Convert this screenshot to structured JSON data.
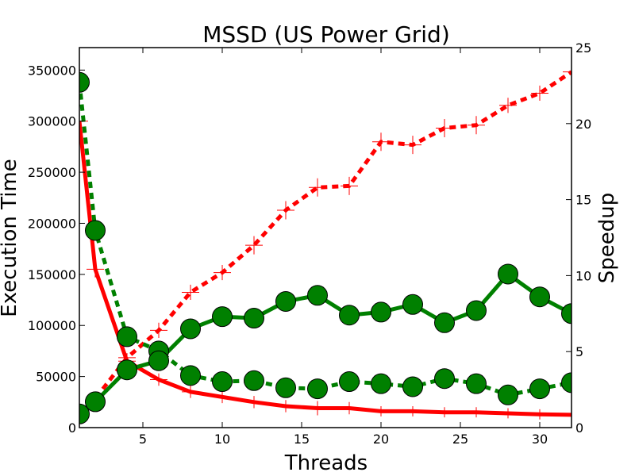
{
  "chart_data": {
    "type": "line",
    "title": "MSSD (US Power Grid)",
    "xlabel": "Threads",
    "ylabel_left": "Execution Time",
    "ylabel_right": "Speedup",
    "xlim": [
      1,
      32
    ],
    "ylim_left": [
      0,
      372000
    ],
    "ylim_right": [
      0,
      25
    ],
    "x_ticks": [
      5,
      10,
      15,
      20,
      25,
      30
    ],
    "y_ticks_left": [
      0,
      50000,
      100000,
      150000,
      200000,
      250000,
      300000,
      350000
    ],
    "y_ticks_right": [
      0,
      5,
      10,
      15,
      20,
      25
    ],
    "grid": false,
    "series": [
      {
        "axis": "left",
        "color": "#ff0000",
        "style": "solid",
        "marker": "errorbar",
        "x": [
          1,
          2,
          4,
          6,
          8,
          10,
          12,
          14,
          16,
          18,
          20,
          22,
          24,
          26,
          28,
          30,
          32
        ],
        "y": [
          300000,
          155000,
          65000,
          47000,
          35000,
          30000,
          25000,
          21000,
          19000,
          19000,
          16000,
          16000,
          15000,
          15000,
          14000,
          13000,
          12500
        ],
        "err": [
          12000,
          8000,
          5000,
          6000,
          6000,
          6000,
          6000,
          6000,
          7000,
          6000,
          5000,
          5000,
          5000,
          5000,
          5000,
          5000,
          5000
        ]
      },
      {
        "axis": "right",
        "color": "#ff0000",
        "style": "dashed",
        "marker": "errorbar",
        "x": [
          1,
          2,
          4,
          6,
          8,
          10,
          12,
          14,
          16,
          18,
          20,
          22,
          24,
          26,
          28,
          30,
          32
        ],
        "y": [
          1.0,
          1.9,
          4.6,
          6.4,
          8.9,
          10.2,
          12.0,
          14.3,
          15.8,
          15.9,
          18.8,
          18.6,
          19.7,
          19.9,
          21.2,
          22.0,
          23.4
        ],
        "err": [
          0.1,
          0.1,
          0.3,
          0.5,
          0.5,
          0.5,
          0.6,
          0.6,
          0.6,
          0.6,
          0.6,
          0.6,
          0.6,
          0.6,
          0.5,
          0.5,
          0.4
        ]
      },
      {
        "axis": "left",
        "color": "#008000",
        "style": "dashed",
        "marker": "circle",
        "x": [
          1,
          2,
          4,
          6,
          8,
          10,
          12,
          14,
          16,
          18,
          20,
          22,
          24,
          26,
          28,
          30,
          32
        ],
        "y": [
          338000,
          193000,
          89000,
          75000,
          51000,
          45000,
          46000,
          39000,
          38000,
          45000,
          43000,
          40000,
          48000,
          43000,
          32000,
          38000,
          44000
        ]
      },
      {
        "axis": "right",
        "color": "#008000",
        "style": "solid",
        "marker": "circle",
        "x": [
          1,
          2,
          4,
          6,
          8,
          10,
          12,
          14,
          16,
          18,
          20,
          22,
          24,
          26,
          28,
          30,
          32
        ],
        "y": [
          0.9,
          1.7,
          3.8,
          4.4,
          6.5,
          7.3,
          7.2,
          8.3,
          8.7,
          7.4,
          7.6,
          8.1,
          6.9,
          7.7,
          10.1,
          8.6,
          7.5
        ]
      }
    ]
  }
}
